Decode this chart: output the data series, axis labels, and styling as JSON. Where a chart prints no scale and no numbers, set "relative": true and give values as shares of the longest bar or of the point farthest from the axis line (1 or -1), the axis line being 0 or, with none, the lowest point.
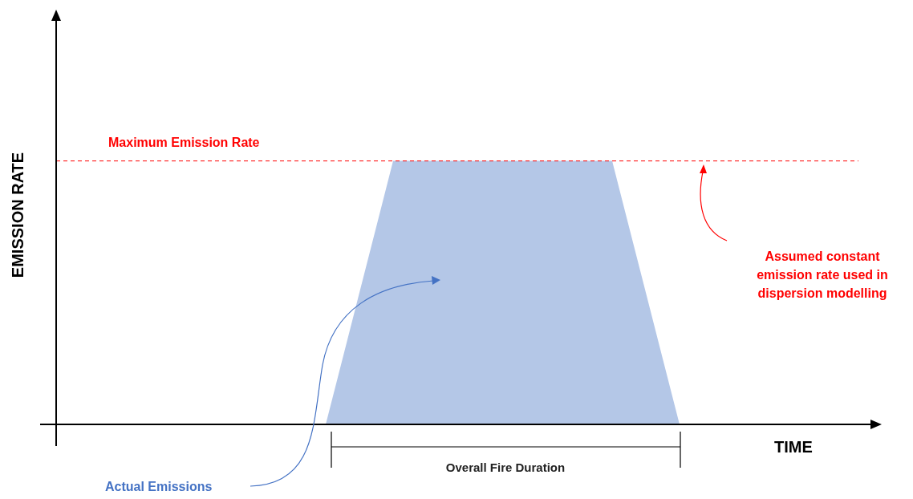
{
  "chart_data": {
    "type": "area",
    "relative": true,
    "xlabel": "TIME",
    "ylabel": "EMISSION RATE",
    "categories": [
      null,
      null,
      null,
      null,
      null,
      null,
      null,
      null,
      null,
      null,
      null,
      null,
      null,
      null,
      null,
      null,
      null,
      null,
      null,
      null,
      null,
      null,
      null,
      null,
      null,
      null,
      null,
      null,
      null,
      null,
      null,
      null,
      null,
      null,
      null,
      null,
      null,
      null,
      null,
      null,
      null,
      null,
      null,
      null,
      null,
      null,
      null,
      null,
      null
    ],
    "values": [
      null,
      null,
      null,
      null,
      null,
      null,
      null,
      null,
      null,
      null,
      null,
      null,
      null,
      null,
      null,
      null,
      0,
      0.25,
      0.5,
      0.75,
      1,
      1,
      1,
      1,
      1,
      1,
      1,
      1,
      1,
      1,
      1,
      1,
      1,
      1,
      0.75,
      0.5,
      0.25,
      0,
      null,
      null,
      null,
      null,
      null,
      null,
      null,
      null,
      null,
      null,
      null
    ],
    "color": "#b4c7e7",
    "ref_lines": [
      {
        "axis": "y",
        "value": 1,
        "label": "Maximum Emission Rate",
        "color": "#ff0000",
        "line_style": "dashed"
      }
    ],
    "annotations": [
      "Assumed constant emission rate used in dispersion modelling",
      "Actual Emissions",
      "Overall Fire Duration"
    ]
  }
}
